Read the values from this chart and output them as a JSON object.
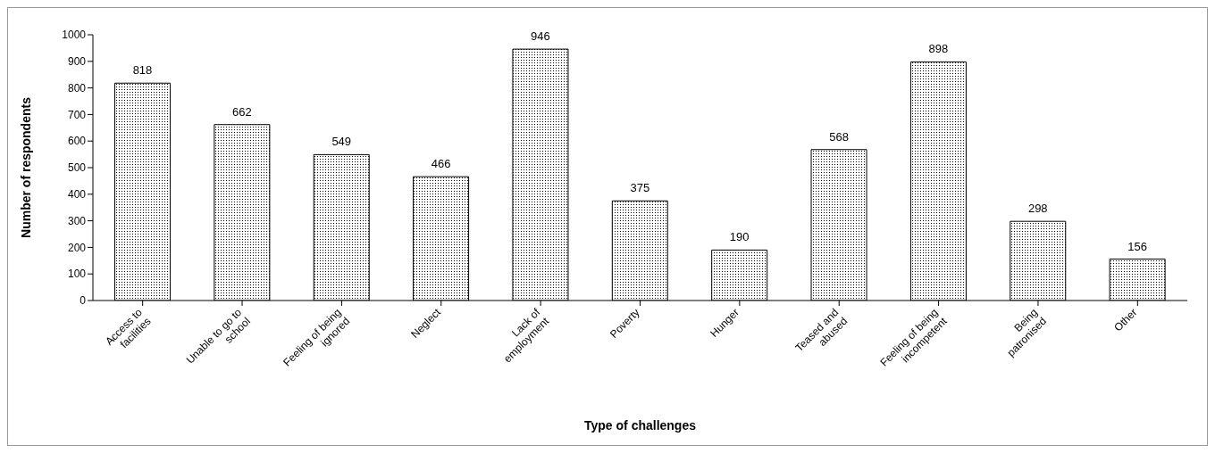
{
  "chart_data": {
    "type": "bar",
    "xlabel": "Type of challenges",
    "ylabel": "Number of respondents",
    "categories": [
      "Access to facilities",
      "Unable to go to school",
      "Feeling of being ignored",
      "Neglect",
      "Lack of employment",
      "Poverty",
      "Hunger",
      "Teased and abused",
      "Feeling of being incompetent",
      "Being patronised",
      "Other"
    ],
    "values": [
      818,
      662,
      549,
      466,
      946,
      375,
      190,
      568,
      898,
      298,
      156
    ],
    "color": "#000000",
    "ylim": [
      0,
      1000
    ],
    "yticks": [
      0,
      100,
      200,
      300,
      400,
      500,
      600,
      700,
      800,
      900,
      1000
    ],
    "grid": false,
    "legend": false,
    "data_labels": true
  }
}
